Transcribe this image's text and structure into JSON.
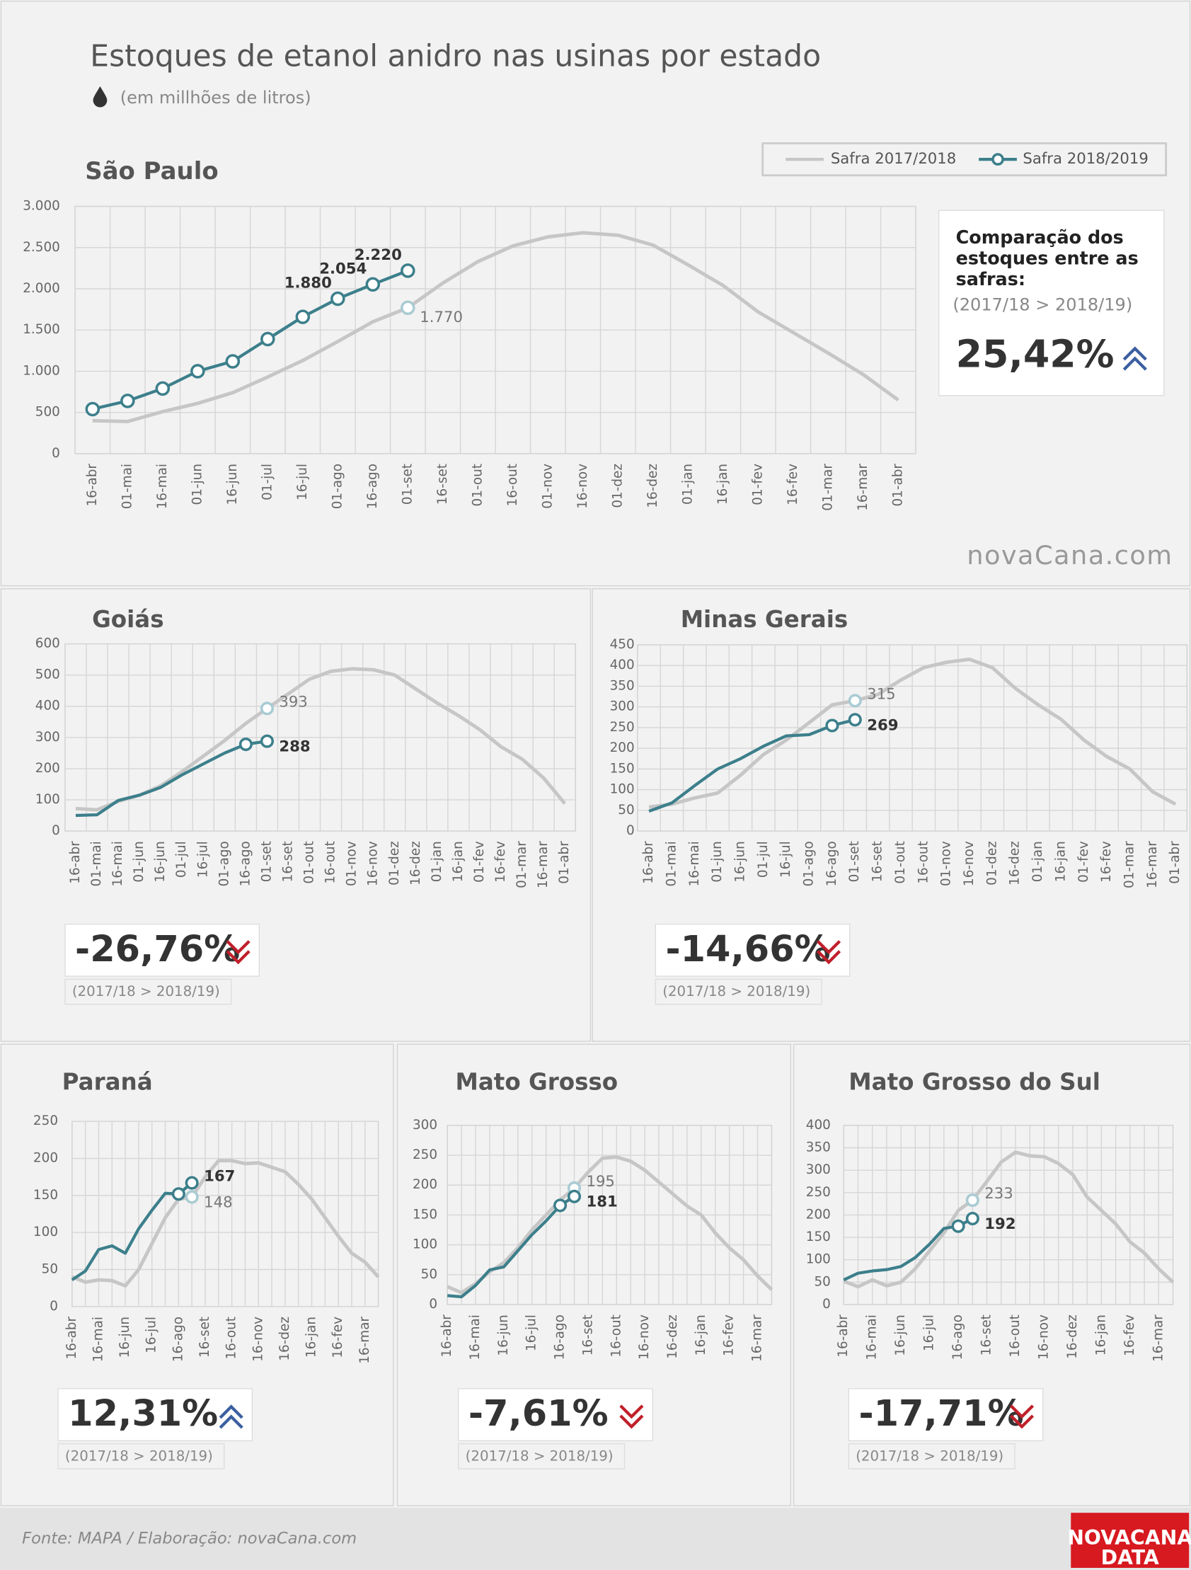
{
  "title": "Estoques de etanol anidro nas usinas por estado",
  "subtitle": "(em millhões de litros)",
  "watermark": "novaCana.com",
  "source": "Fonte: MAPA  / Elaboração: novaCana.com",
  "brand": [
    "NOVACANA",
    "DATA"
  ],
  "chart_data": [
    {
      "type": "line",
      "title": "São Paulo",
      "legend": "top-right",
      "categories": [
        "16-abr",
        "01-mai",
        "16-mai",
        "01-jun",
        "16-jun",
        "01-jul",
        "16-jul",
        "01-ago",
        "16-ago",
        "01-set",
        "16-set",
        "01-out",
        "16-out",
        "01-nov",
        "16-nov",
        "01-dez",
        "16-dez",
        "01-jan",
        "16-jan",
        "01-fev",
        "16-fev",
        "01-mar",
        "16-mar",
        "01-abr"
      ],
      "series": [
        {
          "name": "Safra 2017/2018",
          "color": "#c6c6c6",
          "marker_color": "#a9cbd3",
          "values": [
            400,
            390,
            510,
            610,
            740,
            930,
            1130,
            1360,
            1600,
            1770,
            2070,
            2330,
            2520,
            2630,
            2680,
            2650,
            2530,
            2290,
            2040,
            1720,
            1470,
            1220,
            960,
            650
          ],
          "value_labels": [
            null,
            null,
            null,
            null,
            null,
            null,
            null,
            null,
            null,
            "1.770",
            null,
            null,
            null,
            null,
            null,
            null,
            null,
            null,
            null,
            null,
            null,
            null,
            null,
            null
          ]
        },
        {
          "name": "Safra 2018/2019",
          "color": "#3c7f8b",
          "values": [
            540,
            640,
            790,
            1000,
            1120,
            1390,
            1660,
            1880,
            2054,
            2220,
            null,
            null,
            null,
            null,
            null,
            null,
            null,
            null,
            null,
            null,
            null,
            null,
            null,
            null
          ],
          "value_labels": [
            null,
            null,
            null,
            null,
            null,
            null,
            null,
            "1.880",
            "2.054",
            "2.220",
            null,
            null,
            null,
            null,
            null,
            null,
            null,
            null,
            null,
            null,
            null,
            null,
            null,
            null
          ]
        }
      ],
      "ylim": [
        0,
        3000
      ],
      "yticks": [
        0,
        500,
        {
          "value": 1000,
          "label": "1.000"
        },
        {
          "value": 1500,
          "label": "1.500"
        },
        {
          "value": 2000,
          "label": "2.000"
        },
        {
          "value": 2500,
          "label": "2.500"
        },
        {
          "value": 3000,
          "label": "3.000"
        }
      ],
      "grid": true,
      "comparison": {
        "heading": [
          "Comparação dos",
          "estoques entre as",
          "safras:"
        ],
        "range": "(2017/18 > 2018/19)",
        "value": "25,42%",
        "trend": "up"
      }
    },
    {
      "type": "line",
      "title": "Goiás",
      "categories": [
        "16-abr",
        "01-mai",
        "16-mai",
        "01-jun",
        "16-jun",
        "01-jul",
        "16-jul",
        "01-ago",
        "16-ago",
        "01-set",
        "16-set",
        "01-out",
        "16-out",
        "01-nov",
        "16-nov",
        "01-dez",
        "16-dez",
        "01-jan",
        "16-jan",
        "01-fev",
        "16-fev",
        "01-mar",
        "16-mar",
        "01-abr"
      ],
      "series": [
        {
          "name": "Safra 2017/2018",
          "color": "#c6c6c6",
          "marker_color": "#a9cbd3",
          "values": [
            72,
            68,
            95,
            115,
            145,
            190,
            240,
            290,
            345,
            393,
            440,
            487,
            512,
            520,
            517,
            500,
            455,
            410,
            370,
            325,
            270,
            230,
            170,
            88
          ],
          "value_labels": [
            null,
            null,
            null,
            null,
            null,
            null,
            null,
            null,
            null,
            "393",
            null,
            null,
            null,
            null,
            null,
            null,
            null,
            null,
            null,
            null,
            null,
            null,
            null,
            null
          ]
        },
        {
          "name": "Safra 2018/2019",
          "color": "#3c7f8b",
          "values": [
            50,
            52,
            98,
            115,
            140,
            180,
            215,
            250,
            278,
            288,
            null,
            null,
            null,
            null,
            null,
            null,
            null,
            null,
            null,
            null,
            null,
            null,
            null,
            null
          ],
          "value_labels": [
            null,
            null,
            null,
            null,
            null,
            null,
            null,
            null,
            null,
            "288",
            null,
            null,
            null,
            null,
            null,
            null,
            null,
            null,
            null,
            null,
            null,
            null,
            null,
            null
          ]
        }
      ],
      "ylim": [
        0,
        600
      ],
      "yticks": [
        0,
        100,
        200,
        300,
        400,
        500,
        600
      ],
      "grid": true,
      "comparison": {
        "range": "(2017/18 > 2018/19)",
        "value": "-26,76%",
        "trend": "down"
      }
    },
    {
      "type": "line",
      "title": "Minas Gerais",
      "categories": [
        "16-abr",
        "01-mai",
        "16-mai",
        "01-jun",
        "16-jun",
        "01-jul",
        "16-jul",
        "01-ago",
        "16-ago",
        "01-set",
        "16-set",
        "01-out",
        "16-out",
        "01-nov",
        "16-nov",
        "01-dez",
        "16-dez",
        "01-jan",
        "16-jan",
        "01-fev",
        "16-fev",
        "01-mar",
        "16-mar",
        "01-abr"
      ],
      "series": [
        {
          "name": "Safra 2017/2018",
          "color": "#c6c6c6",
          "marker_color": "#a9cbd3",
          "values": [
            58,
            65,
            80,
            92,
            135,
            185,
            220,
            262,
            305,
            315,
            330,
            365,
            395,
            408,
            415,
            395,
            345,
            305,
            270,
            220,
            180,
            150,
            95,
            65
          ],
          "value_labels": [
            null,
            null,
            null,
            null,
            null,
            null,
            null,
            null,
            null,
            "315",
            null,
            null,
            null,
            null,
            null,
            null,
            null,
            null,
            null,
            null,
            null,
            null,
            null,
            null
          ]
        },
        {
          "name": "Safra 2018/2019",
          "color": "#3c7f8b",
          "values": [
            48,
            68,
            110,
            150,
            175,
            205,
            230,
            233,
            255,
            269,
            null,
            null,
            null,
            null,
            null,
            null,
            null,
            null,
            null,
            null,
            null,
            null,
            null,
            null
          ],
          "value_labels": [
            null,
            null,
            null,
            null,
            null,
            null,
            null,
            null,
            null,
            "269",
            null,
            null,
            null,
            null,
            null,
            null,
            null,
            null,
            null,
            null,
            null,
            null,
            null,
            null
          ]
        }
      ],
      "ylim": [
        0,
        450
      ],
      "yticks": [
        0,
        50,
        100,
        150,
        200,
        250,
        300,
        350,
        400,
        450
      ],
      "grid": true,
      "comparison": {
        "range": "(2017/18 > 2018/19)",
        "value": "-14,66%",
        "trend": "down"
      }
    },
    {
      "type": "line",
      "title": "Paraná",
      "categories": [
        "16-abr",
        null,
        "16-mai",
        null,
        "16-jun",
        null,
        "16-jul",
        null,
        "16-ago",
        null,
        "16-set",
        null,
        "16-out",
        null,
        "16-nov",
        null,
        "16-dez",
        null,
        "16-jan",
        null,
        "16-fev",
        null,
        "16-mar",
        null
      ],
      "series": [
        {
          "name": "Safra 2017/2018",
          "color": "#c6c6c6",
          "marker_color": "#a9cbd3",
          "values": [
            40,
            33,
            36,
            35,
            28,
            50,
            85,
            120,
            145,
            148,
            175,
            197,
            197,
            193,
            194,
            188,
            182,
            165,
            145,
            120,
            95,
            72,
            60,
            40
          ],
          "value_labels": [
            null,
            null,
            null,
            null,
            null,
            null,
            null,
            null,
            null,
            "148",
            null,
            null,
            null,
            null,
            null,
            null,
            null,
            null,
            null,
            null,
            null,
            null,
            null,
            null
          ]
        },
        {
          "name": "Safra 2018/2019",
          "color": "#3c7f8b",
          "values": [
            36,
            48,
            77,
            82,
            72,
            105,
            130,
            153,
            152,
            167,
            null,
            null,
            null,
            null,
            null,
            null,
            null,
            null,
            null,
            null,
            null,
            null,
            null,
            null
          ],
          "value_labels": [
            null,
            null,
            null,
            null,
            null,
            null,
            null,
            null,
            null,
            "167",
            null,
            null,
            null,
            null,
            null,
            null,
            null,
            null,
            null,
            null,
            null,
            null,
            null,
            null
          ]
        }
      ],
      "ylim": [
        0,
        250
      ],
      "yticks": [
        0,
        50,
        100,
        150,
        200,
        250
      ],
      "grid": true,
      "comparison": {
        "range": "(2017/18 > 2018/19)",
        "value": "12,31%",
        "trend": "up"
      }
    },
    {
      "type": "line",
      "title": "Mato Grosso",
      "categories": [
        "16-abr",
        null,
        "16-mai",
        null,
        "16-jun",
        null,
        "16-jul",
        null,
        "16-ago",
        null,
        "16-set",
        null,
        "16-out",
        null,
        "16-nov",
        null,
        "16-dez",
        null,
        "16-jan",
        null,
        "16-fev",
        null,
        "16-mar",
        null
      ],
      "series": [
        {
          "name": "Safra 2017/2018",
          "color": "#c6c6c6",
          "marker_color": "#a9cbd3",
          "values": [
            30,
            20,
            35,
            55,
            70,
            95,
            125,
            150,
            175,
            195,
            222,
            245,
            247,
            240,
            225,
            205,
            185,
            165,
            150,
            120,
            95,
            75,
            48,
            25
          ],
          "value_labels": [
            null,
            null,
            null,
            null,
            null,
            null,
            null,
            null,
            null,
            "195",
            null,
            null,
            null,
            null,
            null,
            null,
            null,
            null,
            null,
            null,
            null,
            null,
            null,
            null
          ]
        },
        {
          "name": "Safra 2018/2019",
          "color": "#3c7f8b",
          "values": [
            15,
            13,
            32,
            58,
            63,
            90,
            117,
            140,
            166,
            181,
            null,
            null,
            null,
            null,
            null,
            null,
            null,
            null,
            null,
            null,
            null,
            null,
            null,
            null
          ],
          "value_labels": [
            null,
            null,
            null,
            null,
            null,
            null,
            null,
            null,
            null,
            "181",
            null,
            null,
            null,
            null,
            null,
            null,
            null,
            null,
            null,
            null,
            null,
            null,
            null,
            null
          ]
        }
      ],
      "ylim": [
        0,
        300
      ],
      "yticks": [
        0,
        50,
        100,
        150,
        200,
        250,
        300
      ],
      "grid": true,
      "comparison": {
        "range": "(2017/18 > 2018/19)",
        "value": "-7,61%",
        "trend": "down"
      }
    },
    {
      "type": "line",
      "title": "Mato Grosso do Sul",
      "categories": [
        "16-abr",
        null,
        "16-mai",
        null,
        "16-jun",
        null,
        "16-jul",
        null,
        "16-ago",
        null,
        "16-set",
        null,
        "16-out",
        null,
        "16-nov",
        null,
        "16-dez",
        null,
        "16-jan",
        null,
        "16-fev",
        null,
        "16-mar",
        null
      ],
      "series": [
        {
          "name": "Safra 2017/2018",
          "color": "#c6c6c6",
          "marker_color": "#a9cbd3",
          "values": [
            52,
            40,
            55,
            42,
            50,
            80,
            120,
            160,
            210,
            233,
            275,
            318,
            340,
            332,
            330,
            315,
            290,
            240,
            210,
            180,
            140,
            115,
            80,
            50
          ],
          "value_labels": [
            null,
            null,
            null,
            null,
            null,
            null,
            null,
            null,
            null,
            "233",
            null,
            null,
            null,
            null,
            null,
            null,
            null,
            null,
            null,
            null,
            null,
            null,
            null,
            null
          ]
        },
        {
          "name": "Safra 2018/2019",
          "color": "#3c7f8b",
          "values": [
            55,
            70,
            75,
            78,
            85,
            105,
            135,
            170,
            175,
            192,
            null,
            null,
            null,
            null,
            null,
            null,
            null,
            null,
            null,
            null,
            null,
            null,
            null,
            null
          ],
          "value_labels": [
            null,
            null,
            null,
            null,
            null,
            null,
            null,
            null,
            null,
            "192",
            null,
            null,
            null,
            null,
            null,
            null,
            null,
            null,
            null,
            null,
            null,
            null,
            null,
            null
          ]
        }
      ],
      "ylim": [
        0,
        400
      ],
      "yticks": [
        0,
        50,
        100,
        150,
        200,
        250,
        300,
        350,
        400
      ],
      "grid": true,
      "comparison": {
        "range": "(2017/18 > 2018/19)",
        "value": "-17,71%",
        "trend": "down"
      }
    }
  ]
}
